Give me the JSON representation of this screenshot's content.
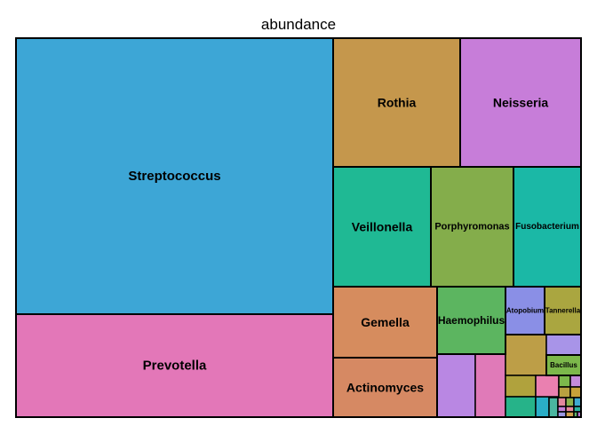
{
  "chart_data": {
    "type": "treemap",
    "title": "abundance",
    "legend": "none",
    "tiles": [
      {
        "label": "Streptococcus",
        "color": "#3da6d6",
        "labeled": true
      },
      {
        "label": "Prevotella",
        "color": "#e377b8",
        "labeled": true
      },
      {
        "label": "Rothia",
        "color": "#c5974c",
        "labeled": true
      },
      {
        "label": "Neisseria",
        "color": "#c77dd9",
        "labeled": true
      },
      {
        "label": "Veillonella",
        "color": "#1fb994",
        "labeled": true
      },
      {
        "label": "Porphyromonas",
        "color": "#84ad4b",
        "labeled": true
      },
      {
        "label": "Fusobacterium",
        "color": "#1bb8a6",
        "labeled": true
      },
      {
        "label": "Gemella",
        "color": "#d68c5e",
        "labeled": true
      },
      {
        "label": "Haemophilus",
        "color": "#5cb560",
        "labeled": true
      },
      {
        "label": "Atopobium",
        "color": "#8a8fe6",
        "labeled": true
      },
      {
        "label": "Tannerella",
        "color": "#aaa640",
        "labeled": true
      },
      {
        "label": "Actinomyces",
        "color": "#d68963",
        "labeled": true
      },
      {
        "label": "Bacillus",
        "color": "#7cb84b",
        "labeled": true
      }
    ],
    "unlabeled_tile_colors": [
      "#b987e3",
      "#e07ab8",
      "#bd9e47",
      "#a894e8",
      "#b0a23d",
      "#26b389",
      "#2aaec7",
      "#ea80b0",
      "#7cb84b",
      "#c48bdb",
      "#b8a040",
      "#c7a23a",
      "#4bb6a0",
      "#e3879d",
      "#8bb04a",
      "#3faad1",
      "#c47ed6",
      "#e6889c",
      "#2cb3a0",
      "#9b98e3",
      "#d1a04c",
      "#62b46c",
      "#b978d3"
    ]
  }
}
